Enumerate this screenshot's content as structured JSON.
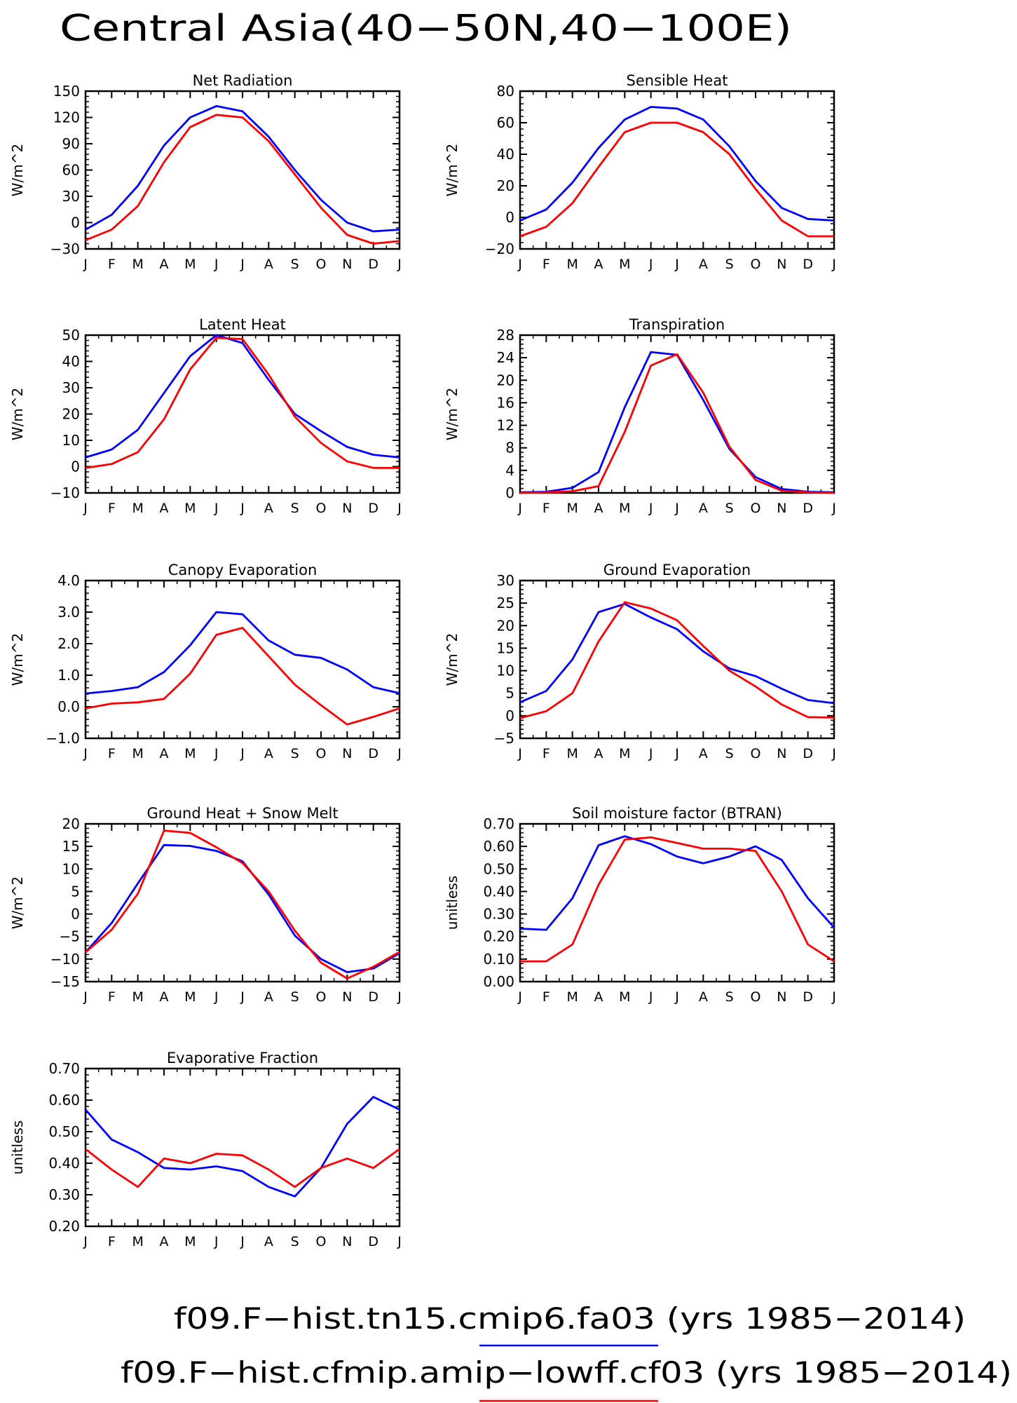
{
  "figure": {
    "title": "Central Asia(40−50N,40−100E)",
    "legend": [
      {
        "label": "f09.F−hist.tn15.cmip6.fa03 (yrs 1985−2014)",
        "color": "#0000ff"
      },
      {
        "label": "f09.F−hist.cfmip.amip−lowff.cf03 (yrs 1985−2014)",
        "color": "#ff0000"
      }
    ]
  },
  "chart_data": [
    {
      "type": "line",
      "title": "Net Radiation",
      "ylabel": "W/m^2",
      "categories": [
        "J",
        "F",
        "M",
        "A",
        "M",
        "J",
        "J",
        "A",
        "S",
        "O",
        "N",
        "D",
        "J"
      ],
      "ylim": [
        -30,
        150
      ],
      "yticks": [
        -30,
        0,
        30,
        60,
        90,
        120,
        150
      ],
      "ytick_labels": [
        "−30",
        "0",
        "30",
        "60",
        "90",
        "120",
        "150"
      ],
      "series": [
        {
          "color": "#0000ff",
          "values": [
            -8,
            9,
            42,
            88,
            120,
            133,
            127,
            98,
            60,
            26,
            0,
            -10,
            -8
          ]
        },
        {
          "color": "#ff0000",
          "values": [
            -20,
            -8,
            19,
            69,
            109,
            123,
            120,
            93,
            55,
            17,
            -14,
            -24,
            -21
          ]
        }
      ]
    },
    {
      "type": "line",
      "title": "Sensible Heat",
      "ylabel": "W/m^2",
      "categories": [
        "J",
        "F",
        "M",
        "A",
        "M",
        "J",
        "J",
        "A",
        "S",
        "O",
        "N",
        "D",
        "J"
      ],
      "ylim": [
        -20,
        80
      ],
      "yticks": [
        -20,
        0,
        20,
        40,
        60,
        80
      ],
      "ytick_labels": [
        "−20",
        "0",
        "20",
        "40",
        "60",
        "80"
      ],
      "series": [
        {
          "color": "#0000ff",
          "values": [
            -2,
            5,
            22,
            44,
            62,
            70,
            69,
            62,
            45,
            23,
            6,
            -1,
            -2
          ]
        },
        {
          "color": "#ff0000",
          "values": [
            -12,
            -6,
            9,
            32,
            54,
            60,
            60,
            54,
            40,
            18,
            -2,
            -12,
            -12
          ]
        }
      ]
    },
    {
      "type": "line",
      "title": "Latent Heat",
      "ylabel": "W/m^2",
      "categories": [
        "J",
        "F",
        "M",
        "A",
        "M",
        "J",
        "J",
        "A",
        "S",
        "O",
        "N",
        "D",
        "J"
      ],
      "ylim": [
        -10,
        50
      ],
      "yticks": [
        -10,
        0,
        10,
        20,
        30,
        40,
        50
      ],
      "ytick_labels": [
        "−10",
        "0",
        "10",
        "20",
        "30",
        "40",
        "50"
      ],
      "series": [
        {
          "color": "#0000ff",
          "values": [
            3.5,
            6.5,
            14,
            28,
            42,
            50,
            47,
            33,
            20,
            13.5,
            7.5,
            4.5,
            3.5
          ]
        },
        {
          "color": "#ff0000",
          "values": [
            -0.5,
            1,
            5.5,
            18,
            37,
            49,
            48.5,
            35,
            19,
            9,
            2,
            -0.5,
            -0.5
          ]
        }
      ]
    },
    {
      "type": "line",
      "title": "Transpiration",
      "ylabel": "W/m^2",
      "categories": [
        "J",
        "F",
        "M",
        "A",
        "M",
        "J",
        "J",
        "A",
        "S",
        "O",
        "N",
        "D",
        "J"
      ],
      "ylim": [
        0,
        28
      ],
      "yticks": [
        0,
        4,
        8,
        12,
        16,
        20,
        24,
        28
      ],
      "ytick_labels": [
        "0",
        "4",
        "8",
        "12",
        "16",
        "20",
        "24",
        "28"
      ],
      "series": [
        {
          "color": "#0000ff",
          "values": [
            0.1,
            0.2,
            0.9,
            3.7,
            15.2,
            25,
            24.5,
            16.5,
            7.8,
            2.8,
            0.7,
            0.2,
            0.1
          ]
        },
        {
          "color": "#ff0000",
          "values": [
            0,
            0.1,
            0.3,
            1.2,
            10.8,
            22.6,
            24.6,
            17.8,
            8.2,
            2.3,
            0.4,
            0.1,
            0
          ]
        }
      ]
    },
    {
      "type": "line",
      "title": "Canopy Evaporation",
      "ylabel": "W/m^2",
      "categories": [
        "J",
        "F",
        "M",
        "A",
        "M",
        "J",
        "J",
        "A",
        "S",
        "O",
        "N",
        "D",
        "J"
      ],
      "ylim": [
        -1,
        4
      ],
      "yticks": [
        -1,
        0,
        1,
        2,
        3,
        4
      ],
      "ytick_labels": [
        "−1.0",
        "0.0",
        "1.0",
        "2.0",
        "3.0",
        "4.0"
      ],
      "series": [
        {
          "color": "#0000ff",
          "values": [
            0.42,
            0.5,
            0.62,
            1.1,
            1.95,
            3.0,
            2.93,
            2.1,
            1.65,
            1.55,
            1.18,
            0.62,
            0.43
          ]
        },
        {
          "color": "#ff0000",
          "values": [
            -0.05,
            0.1,
            0.14,
            0.25,
            1.05,
            2.28,
            2.5,
            1.6,
            0.7,
            0.05,
            -0.56,
            -0.32,
            -0.05
          ]
        }
      ]
    },
    {
      "type": "line",
      "title": "Ground Evaporation",
      "ylabel": "W/m^2",
      "categories": [
        "J",
        "F",
        "M",
        "A",
        "M",
        "J",
        "J",
        "A",
        "S",
        "O",
        "N",
        "D",
        "J"
      ],
      "ylim": [
        -5,
        30
      ],
      "yticks": [
        -5,
        0,
        5,
        10,
        15,
        20,
        25,
        30
      ],
      "ytick_labels": [
        "−5",
        "0",
        "5",
        "10",
        "15",
        "20",
        "25",
        "30"
      ],
      "series": [
        {
          "color": "#0000ff",
          "values": [
            3,
            5.5,
            12.5,
            23,
            24.8,
            21.8,
            19.2,
            14.3,
            10.5,
            8.8,
            6,
            3.5,
            2.8
          ]
        },
        {
          "color": "#ff0000",
          "values": [
            -0.5,
            1,
            5,
            16.5,
            25.2,
            23.8,
            21.2,
            15.5,
            10,
            6.5,
            2.5,
            -0.3,
            -0.4
          ]
        }
      ]
    },
    {
      "type": "line",
      "title": "Ground Heat + Snow Melt",
      "ylabel": "W/m^2",
      "categories": [
        "J",
        "F",
        "M",
        "A",
        "M",
        "J",
        "J",
        "A",
        "S",
        "O",
        "N",
        "D",
        "J"
      ],
      "ylim": [
        -15,
        20
      ],
      "yticks": [
        -15,
        -10,
        -5,
        0,
        5,
        10,
        15,
        20
      ],
      "ytick_labels": [
        "−15",
        "−10",
        "−5",
        "0",
        "5",
        "10",
        "15",
        "20"
      ],
      "series": [
        {
          "color": "#0000ff",
          "values": [
            -8.5,
            -2,
            6.8,
            15.3,
            15.1,
            14,
            11.7,
            4.3,
            -4.8,
            -10,
            -12.9,
            -12.1,
            -8.7
          ]
        },
        {
          "color": "#ff0000",
          "values": [
            -8.5,
            -3.5,
            4.5,
            18.5,
            18,
            14.8,
            11.3,
            5,
            -3.7,
            -10.8,
            -14.3,
            -11.7,
            -8.4
          ]
        }
      ]
    },
    {
      "type": "line",
      "title": "Soil moisture factor (BTRAN)",
      "ylabel": "unitless",
      "categories": [
        "J",
        "F",
        "M",
        "A",
        "M",
        "J",
        "J",
        "A",
        "S",
        "O",
        "N",
        "D",
        "J"
      ],
      "ylim": [
        0,
        0.7
      ],
      "yticks": [
        0,
        0.1,
        0.2,
        0.3,
        0.4,
        0.5,
        0.6,
        0.7
      ],
      "ytick_labels": [
        "0.00",
        "0.10",
        "0.20",
        "0.30",
        "0.40",
        "0.50",
        "0.60",
        "0.70"
      ],
      "series": [
        {
          "color": "#0000ff",
          "values": [
            0.235,
            0.23,
            0.37,
            0.605,
            0.645,
            0.61,
            0.555,
            0.525,
            0.555,
            0.6,
            0.54,
            0.37,
            0.24
          ]
        },
        {
          "color": "#ff0000",
          "values": [
            0.09,
            0.09,
            0.165,
            0.43,
            0.63,
            0.64,
            0.615,
            0.59,
            0.59,
            0.58,
            0.4,
            0.165,
            0.09
          ]
        }
      ]
    },
    {
      "type": "line",
      "title": "Evaporative Fraction",
      "ylabel": "unitless",
      "categories": [
        "J",
        "F",
        "M",
        "A",
        "M",
        "J",
        "J",
        "A",
        "S",
        "O",
        "N",
        "D",
        "J"
      ],
      "ylim": [
        0.2,
        0.7
      ],
      "yticks": [
        0.2,
        0.3,
        0.4,
        0.5,
        0.6,
        0.7
      ],
      "ytick_labels": [
        "0.20",
        "0.30",
        "0.40",
        "0.50",
        "0.60",
        "0.70"
      ],
      "series": [
        {
          "color": "#0000ff",
          "values": [
            0.57,
            0.475,
            0.435,
            0.385,
            0.38,
            0.39,
            0.375,
            0.325,
            0.295,
            0.385,
            0.525,
            0.61,
            0.57
          ]
        },
        {
          "color": "#ff0000",
          "values": [
            0.445,
            0.38,
            0.325,
            0.415,
            0.4,
            0.43,
            0.425,
            0.38,
            0.325,
            0.385,
            0.415,
            0.385,
            0.445
          ]
        }
      ]
    }
  ]
}
